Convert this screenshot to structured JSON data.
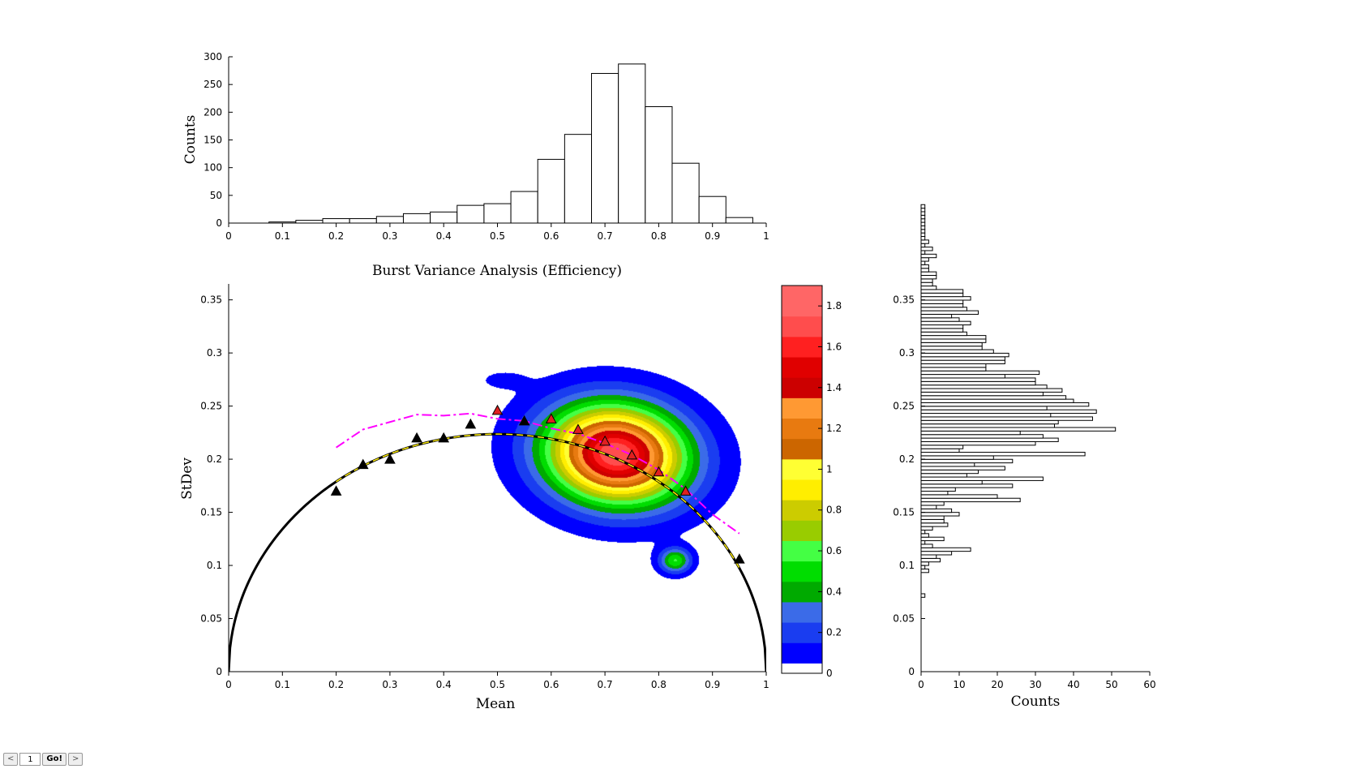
{
  "chart_data": [
    {
      "id": "top",
      "type": "bar",
      "xlabel": "Burst Variance Analysis (Efficiency)",
      "ylabel": "Counts",
      "xlim": [
        0,
        1
      ],
      "ylim": [
        0,
        300
      ],
      "xticks": [
        "0",
        "0.1",
        "0.2",
        "0.3",
        "0.4",
        "0.5",
        "0.6",
        "0.7",
        "0.8",
        "0.9",
        "1"
      ],
      "yticks": [
        "0",
        "50",
        "100",
        "150",
        "200",
        "250",
        "300"
      ],
      "bin_edges": [
        0.075,
        0.125,
        0.175,
        0.225,
        0.275,
        0.325,
        0.375,
        0.425,
        0.475,
        0.525,
        0.575,
        0.625,
        0.675,
        0.725,
        0.775,
        0.825,
        0.875,
        0.925,
        0.975
      ],
      "values": [
        2,
        5,
        8,
        8,
        12,
        17,
        20,
        32,
        35,
        57,
        115,
        160,
        270,
        287,
        210,
        108,
        48,
        10
      ]
    },
    {
      "id": "main",
      "type": "scatter",
      "xlabel": "Mean",
      "ylabel": "StDev",
      "xlim": [
        0,
        1
      ],
      "ylim": [
        0,
        0.365
      ],
      "xticks": [
        "0",
        "0.1",
        "0.2",
        "0.3",
        "0.4",
        "0.5",
        "0.6",
        "0.7",
        "0.8",
        "0.9",
        "1"
      ],
      "yticks": [
        "0",
        "0.05",
        "0.1",
        "0.15",
        "0.2",
        "0.25",
        "0.3",
        "0.35"
      ],
      "black_triangles": [
        [
          0.2,
          0.17
        ],
        [
          0.25,
          0.195
        ],
        [
          0.3,
          0.2
        ],
        [
          0.35,
          0.22
        ],
        [
          0.4,
          0.22
        ],
        [
          0.45,
          0.233
        ],
        [
          0.55,
          0.236
        ],
        [
          0.95,
          0.106
        ]
      ],
      "red_triangles": [
        [
          0.5,
          0.246
        ],
        [
          0.6,
          0.238
        ],
        [
          0.65,
          0.228
        ],
        [
          0.7,
          0.217
        ],
        [
          0.75,
          0.204
        ],
        [
          0.8,
          0.188
        ],
        [
          0.85,
          0.17
        ]
      ],
      "magenta_curve": [
        [
          0.2,
          0.211
        ],
        [
          0.25,
          0.228
        ],
        [
          0.3,
          0.235
        ],
        [
          0.35,
          0.242
        ],
        [
          0.4,
          0.241
        ],
        [
          0.45,
          0.243
        ],
        [
          0.5,
          0.238
        ],
        [
          0.55,
          0.236
        ],
        [
          0.6,
          0.229
        ],
        [
          0.65,
          0.224
        ],
        [
          0.7,
          0.215
        ],
        [
          0.75,
          0.204
        ],
        [
          0.8,
          0.19
        ],
        [
          0.85,
          0.172
        ],
        [
          0.9,
          0.148
        ],
        [
          0.95,
          0.13
        ]
      ],
      "curve": "sqrt(x*(1-x))/sqrt(5)",
      "density": [
        {
          "x": 0.72,
          "y": 0.205,
          "sx": 0.09,
          "sy": 0.03,
          "theta": -40,
          "amp": 1.75
        },
        {
          "x": 0.83,
          "y": 0.105,
          "sx": 0.02,
          "sy": 0.008,
          "theta": 0,
          "amp": 0.55
        },
        {
          "x": 0.51,
          "y": 0.275,
          "sx": 0.03,
          "sy": 0.006,
          "theta": 0,
          "amp": 0.08
        }
      ]
    },
    {
      "id": "colorbar",
      "type": "heatmap",
      "ticks": [
        "0",
        "0.2",
        "0.4",
        "0.6",
        "0.8",
        "1",
        "1.2",
        "1.4",
        "1.6",
        "1.8"
      ],
      "range": [
        0,
        1.9
      ],
      "levels": [
        0,
        0.05,
        0.15,
        0.25,
        0.35,
        0.45,
        0.55,
        0.65,
        0.75,
        0.85,
        0.95,
        1.05,
        1.15,
        1.25,
        1.35,
        1.45,
        1.55,
        1.65,
        1.75
      ],
      "colors": [
        "#ffffff",
        "#0000ff",
        "#1a3df0",
        "#3b6be8",
        "#00aa00",
        "#00dd00",
        "#44ff44",
        "#99cc00",
        "#cccc00",
        "#ffee00",
        "#ffff33",
        "#cc6600",
        "#e87a10",
        "#ff9933",
        "#cc0000",
        "#e00000",
        "#ff2020",
        "#ff4d4d",
        "#ff6666"
      ]
    },
    {
      "id": "side",
      "type": "bar",
      "orientation": "horizontal",
      "xlabel": "Counts",
      "xlim": [
        0,
        60
      ],
      "ylim": [
        0,
        0.365
      ],
      "xticks": [
        "0",
        "10",
        "20",
        "30",
        "40",
        "50",
        "60"
      ],
      "yticks": [
        "0",
        "0.05",
        "0.1",
        "0.15",
        "0.2",
        "0.25",
        "0.3",
        "0.35"
      ],
      "bin_start": 0.07,
      "bin_width": 0.00333,
      "values": [
        1,
        0,
        0,
        0,
        0,
        0,
        0,
        2,
        1,
        2,
        5,
        4,
        8,
        13,
        3,
        1,
        6,
        2,
        1,
        3,
        7,
        6,
        6,
        10,
        8,
        4,
        6,
        26,
        20,
        7,
        9,
        24,
        16,
        32,
        12,
        15,
        22,
        14,
        24,
        19,
        43,
        10,
        11,
        30,
        36,
        32,
        26,
        51,
        35,
        36,
        45,
        34,
        46,
        33,
        44,
        40,
        38,
        32,
        37,
        33,
        30,
        30,
        22,
        31,
        17,
        17,
        22,
        22,
        23,
        19,
        16,
        16,
        17,
        17,
        12,
        11,
        11,
        13,
        10,
        8,
        15,
        12,
        11,
        11,
        13,
        11,
        11,
        4,
        3,
        3,
        4,
        4,
        2,
        2,
        1,
        2,
        4,
        1,
        3,
        1,
        2,
        1,
        1,
        1,
        1,
        1,
        1,
        1,
        1,
        1,
        1
      ]
    }
  ],
  "pager": {
    "prev": "<",
    "page": "1",
    "go": "Go!",
    "next": ">"
  }
}
